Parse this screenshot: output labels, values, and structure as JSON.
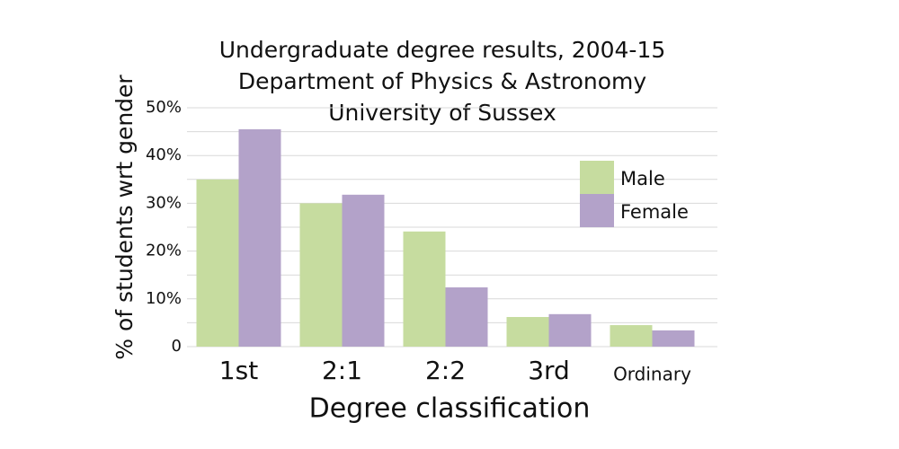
{
  "chart_data": {
    "type": "bar",
    "title": [
      "Undergraduate degree results, 2004-15",
      "Department of Physics & Astronomy",
      "University of Sussex"
    ],
    "x_label": "Degree classification",
    "y_label": "% of students wrt gender",
    "categories": [
      "1st",
      "2:1",
      "2:2",
      "3rd",
      "Ordinary"
    ],
    "series": [
      {
        "name": "Male",
        "color": "#c6dc9f",
        "values": [
          35,
          30,
          24.1,
          6.2,
          4.5
        ]
      },
      {
        "name": "Female",
        "color": "#b3a2c9",
        "values": [
          45.5,
          31.8,
          12.4,
          6.8,
          3.4
        ]
      }
    ],
    "ylim": [
      0,
      50
    ],
    "yticks": [
      0,
      {
        "value": 10,
        "label": "10%"
      },
      {
        "value": 20,
        "label": "20%"
      },
      {
        "value": 30,
        "label": "30%"
      },
      {
        "value": 40,
        "label": "40%"
      },
      {
        "value": 50,
        "label": "50%"
      }
    ],
    "yminorticks": [
      5,
      15,
      25,
      35,
      45
    ],
    "grid": true,
    "legend": "upper-right"
  }
}
